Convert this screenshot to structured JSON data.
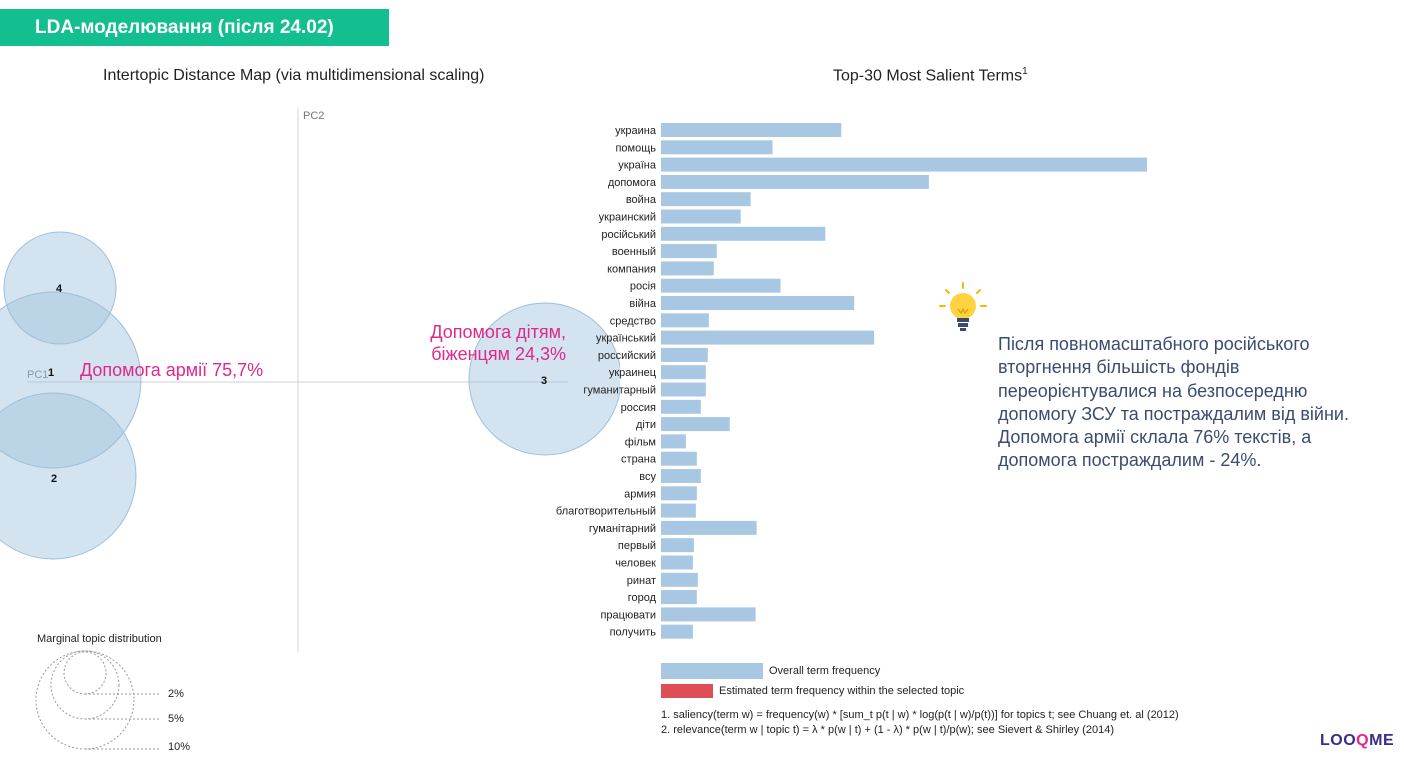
{
  "header": {
    "title": "LDA-моделювання (після 24.02)"
  },
  "left_panel": {
    "title": "Intertopic Distance Map (via multidimensional scaling)",
    "axis_pc1": "PC1",
    "axis_pc2": "PC2",
    "topics": [
      {
        "id": "1"
      },
      {
        "id": "2"
      },
      {
        "id": "3"
      },
      {
        "id": "4"
      }
    ],
    "annotation_army": "Допомога армії 75,7%",
    "annotation_children_line1": "Допомога дітям,",
    "annotation_children_line2": "біженцям 24,3%",
    "marginal": {
      "title": "Marginal topic distribution",
      "labels": [
        "2%",
        "5%",
        "10%"
      ]
    }
  },
  "right_panel": {
    "title": "Top-30 Most Salient Terms",
    "title_sup": "1",
    "legend": {
      "overall": "Overall term frequency",
      "estimated": "Estimated term frequency within the selected topic"
    },
    "notes": [
      "1. saliency(term w) = frequency(w) * [sum_t p(t | w) * log(p(t | w)/p(t))] for topics t; see Chuang et. al (2012)",
      "2. relevance(term w | topic t) = λ * p(w | t) + (1 - λ) * p(w | t)/p(w); see Sievert & Shirley (2014)"
    ]
  },
  "insight": {
    "text": "Після повномасштабного російського вторгнення більшість фондів переорієнтувалися на безпосередню допомогу ЗСУ та постраждалим від війни. Допомога армії склала 76% текстів, а допомога постраждалим - 24%."
  },
  "logo": {
    "part1": "LOO",
    "part2": "Q",
    "part3": "ME"
  },
  "colors": {
    "accent_green": "#13bf8e",
    "bar": "#a7c7e3",
    "estimated": "#de4f55",
    "annotation_pink": "#e0288a",
    "insight_text": "#3c4b6f"
  },
  "chart_data": {
    "type": "bar",
    "orientation": "horizontal",
    "title": "Top-30 Most Salient Terms",
    "categories": [
      "украина",
      "помощь",
      "україна",
      "допомога",
      "война",
      "украинский",
      "російський",
      "военный",
      "компания",
      "росія",
      "війна",
      "средство",
      "український",
      "российский",
      "украинец",
      "гуманитарный",
      "россия",
      "діти",
      "фільм",
      "страна",
      "всу",
      "армия",
      "благотворительный",
      "гуманітарний",
      "первый",
      "человек",
      "ринат",
      "город",
      "працювати",
      "получить"
    ],
    "series": [
      {
        "name": "Overall term frequency",
        "values": [
          181,
          112,
          488,
          269,
          90,
          80,
          165,
          56,
          53,
          120,
          194,
          48,
          214,
          47,
          45,
          45,
          40,
          69,
          25,
          36,
          40,
          36,
          35,
          96,
          33,
          32,
          37,
          36,
          95,
          32
        ]
      }
    ],
    "xlim": [
      0,
      490
    ]
  }
}
